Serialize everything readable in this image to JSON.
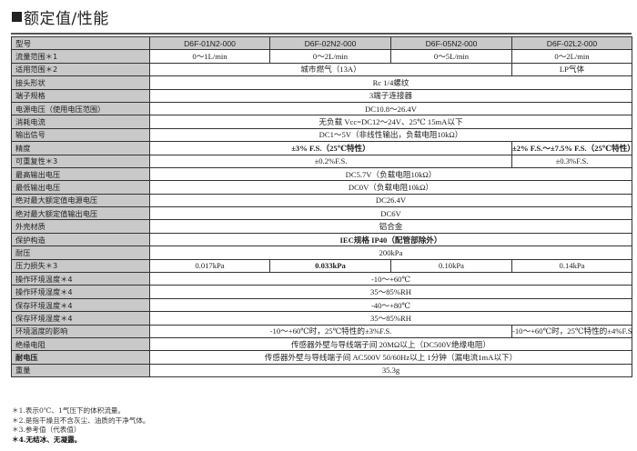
{
  "title": "额定值/性能",
  "columns": [
    "型号",
    "D6F-01N2-000",
    "D6F-02N2-000",
    "D6F-05N2-000",
    "D6F-02L2-000"
  ],
  "rows": [
    {
      "label": "流量范围＊1",
      "cells": [
        {
          "text": "0～1L/min",
          "span": 1
        },
        {
          "text": "0～2L/min",
          "span": 1
        },
        {
          "text": "0～5L/min",
          "span": 1
        },
        {
          "text": "0～2L/min",
          "span": 1
        }
      ]
    },
    {
      "label": "适用范围＊2",
      "cells": [
        {
          "text": "城市燃气（13A）",
          "span": 3
        },
        {
          "text": "LP气体",
          "span": 1
        }
      ]
    },
    {
      "label": "接头形状",
      "cells": [
        {
          "text": "Rc 1/4螺纹",
          "span": 4
        }
      ]
    },
    {
      "label": "端子规格",
      "cells": [
        {
          "text": "3端子连接器",
          "span": 4
        }
      ]
    },
    {
      "label": "电源电压（使用电压范围）",
      "cells": [
        {
          "text": "DC10.8～26.4V",
          "span": 4
        }
      ]
    },
    {
      "label": "消耗电流",
      "cells": [
        {
          "text": "无负载  Vcc=DC12～24V、25℃  15mA以下",
          "span": 4
        }
      ]
    },
    {
      "label": "输出信号",
      "cells": [
        {
          "text": "DC1～5V（非线性输出，负载电阻10kΩ）",
          "span": 4
        }
      ]
    },
    {
      "label": "精度",
      "cells": [
        {
          "text": "±3% F.S.（25℃特性）",
          "span": 3,
          "bold": true
        },
        {
          "text": "±2% F.S.～±7.5% F.S.（25℃特性）",
          "span": 1,
          "bold": true
        }
      ]
    },
    {
      "label": "可重复性＊3",
      "cells": [
        {
          "text": "±0.2%F.S.",
          "span": 3
        },
        {
          "text": "±0.3%F.S.",
          "span": 1
        }
      ]
    },
    {
      "label": "最高输出电压",
      "cells": [
        {
          "text": "DC5.7V（负载电阻10kΩ）",
          "span": 4
        }
      ]
    },
    {
      "label": "最低输出电压",
      "cells": [
        {
          "text": "DC0V（负载电阻10kΩ）",
          "span": 4
        }
      ]
    },
    {
      "label": "绝对最大额定值电源电压",
      "cells": [
        {
          "text": "DC26.4V",
          "span": 4
        }
      ]
    },
    {
      "label": "绝对最大额定值输出电压",
      "cells": [
        {
          "text": "DC6V",
          "span": 4
        }
      ]
    },
    {
      "label": "外壳材质",
      "cells": [
        {
          "text": "铝合金",
          "span": 4
        }
      ]
    },
    {
      "label": "保护构造",
      "cells": [
        {
          "text": "IEC规格  IP40（配管部除外）",
          "span": 4,
          "bold": true
        }
      ]
    },
    {
      "label": "耐压",
      "cells": [
        {
          "text": "200kPa",
          "span": 4
        }
      ]
    },
    {
      "label": "压力损失＊3",
      "cells": [
        {
          "text": "0.017kPa",
          "span": 1
        },
        {
          "text": "0.033kPa",
          "span": 1,
          "bold": true
        },
        {
          "text": "0.10kPa",
          "span": 1
        },
        {
          "text": "0.14kPa",
          "span": 1
        }
      ]
    },
    {
      "label": "操作环境温度＊4",
      "cells": [
        {
          "text": "-10～+60℃",
          "span": 4
        }
      ]
    },
    {
      "label": "操作环境湿度＊4",
      "cells": [
        {
          "text": "35～85%RH",
          "span": 4
        }
      ]
    },
    {
      "label": "保存环境温度＊4",
      "cells": [
        {
          "text": "-40～+80℃",
          "span": 4
        }
      ]
    },
    {
      "label": "保存环境湿度＊4",
      "cells": [
        {
          "text": "35～85%RH",
          "span": 4
        }
      ]
    },
    {
      "label": "环境温度的影响",
      "cells": [
        {
          "text": "-10～+60℃时，25℃特性的±3%F.S.",
          "span": 3
        },
        {
          "text": "-10～+60℃时，25℃特性的±4%F.S.",
          "span": 1
        }
      ]
    },
    {
      "label": "绝缘电阻",
      "cells": [
        {
          "text": "传感器外壁与导线端子间  20MΩ以上（DC500V绝缘电阻）",
          "span": 4
        }
      ]
    },
    {
      "label": "耐电压",
      "label_bold": true,
      "cells": [
        {
          "text": "传感器外壁与导线端子间 AC500V  50/60Hz以上  1分钟（漏电流1mA以下）",
          "span": 4
        }
      ]
    },
    {
      "label": "重量",
      "cells": [
        {
          "text": "35.3g",
          "span": 4
        }
      ]
    }
  ],
  "footnotes": [
    {
      "text": "＊1.表示0℃、1气压下的体积流量。",
      "bold": false
    },
    {
      "text": "＊2.是指干燥且不含灰尘、油质的干净气体。",
      "bold": false
    },
    {
      "text": "＊3.参考值（代表值）",
      "bold": false
    },
    {
      "text": "＊4.无结冰、无凝露。",
      "bold": true
    }
  ]
}
